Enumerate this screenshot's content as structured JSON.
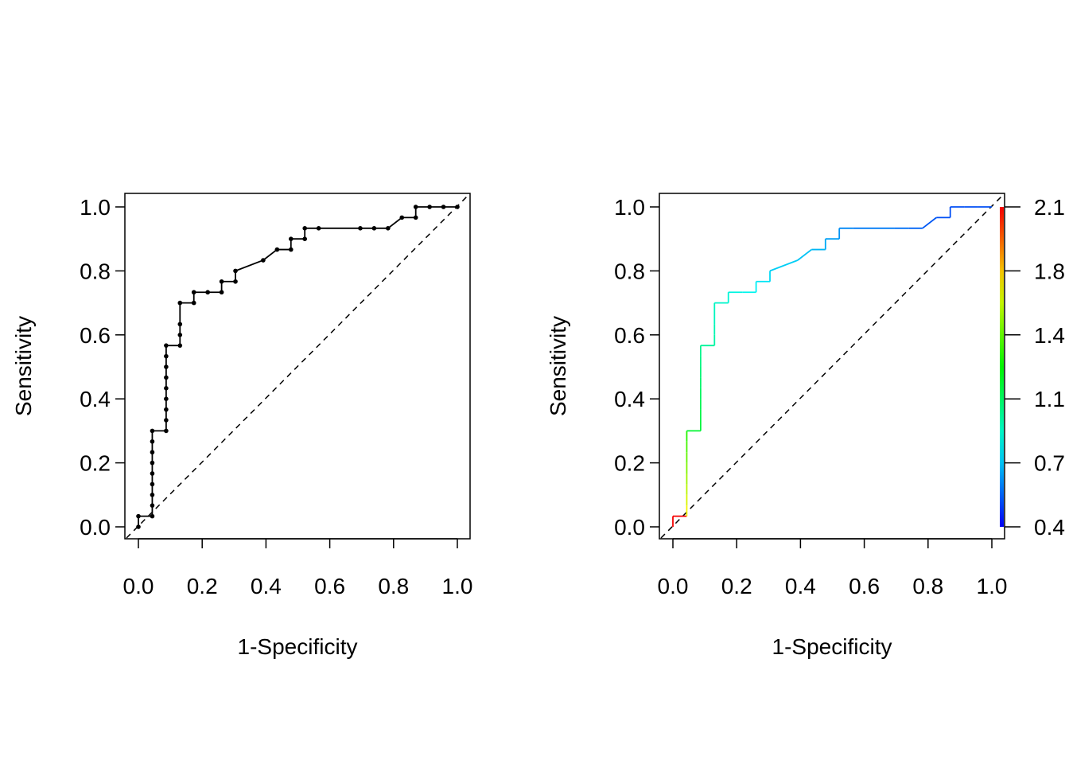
{
  "chart_data": [
    {
      "type": "line",
      "title": "",
      "xlabel": "1-Specificity",
      "ylabel": "Sensitivity",
      "xlim": [
        0,
        1
      ],
      "ylim": [
        0,
        1
      ],
      "xticks": [
        "0.0",
        "0.2",
        "0.4",
        "0.6",
        "0.8",
        "1.0"
      ],
      "yticks": [
        "0.0",
        "0.2",
        "0.4",
        "0.6",
        "0.8",
        "1.0"
      ],
      "show_points": true,
      "line_color": "#000000",
      "reference_line": {
        "x": [
          0,
          1
        ],
        "y": [
          0,
          1
        ],
        "style": "dashed"
      },
      "fpr": [
        0,
        0,
        0.0435,
        0.0435,
        0.0435,
        0.0435,
        0.0435,
        0.0435,
        0.0435,
        0.0435,
        0.0435,
        0.087,
        0.087,
        0.087,
        0.087,
        0.087,
        0.087,
        0.087,
        0.087,
        0.087,
        0.1304,
        0.1304,
        0.1304,
        0.1304,
        0.1739,
        0.1739,
        0.2174,
        0.2609,
        0.2609,
        0.3043,
        0.3043,
        0.3913,
        0.4348,
        0.4783,
        0.4783,
        0.5217,
        0.5217,
        0.5652,
        0.6957,
        0.7391,
        0.7826,
        0.8261,
        0.8696,
        0.8696,
        0.913,
        0.9565,
        1.0
      ],
      "tpr": [
        0,
        0.0333,
        0.0333,
        0.0667,
        0.1,
        0.1333,
        0.1667,
        0.2,
        0.2333,
        0.2667,
        0.3,
        0.3,
        0.3333,
        0.3667,
        0.4,
        0.4333,
        0.4667,
        0.5,
        0.5333,
        0.5667,
        0.5667,
        0.6,
        0.6333,
        0.7,
        0.7,
        0.7333,
        0.7333,
        0.7333,
        0.7667,
        0.7667,
        0.8,
        0.8333,
        0.8667,
        0.8667,
        0.9,
        0.9,
        0.9333,
        0.9333,
        0.9333,
        0.9333,
        0.9333,
        0.9667,
        0.9667,
        1.0,
        1.0,
        1.0,
        1.0
      ]
    },
    {
      "type": "line",
      "title": "",
      "xlabel": "1-Specificity",
      "ylabel": "Sensitivity",
      "xlim": [
        0,
        1
      ],
      "ylim": [
        0,
        1
      ],
      "xticks": [
        "0.0",
        "0.2",
        "0.4",
        "0.6",
        "0.8",
        "1.0"
      ],
      "yticks": [
        "0.0",
        "0.2",
        "0.4",
        "0.6",
        "0.8",
        "1.0"
      ],
      "show_points": false,
      "colored_by_threshold": true,
      "reference_line": {
        "x": [
          0,
          1
        ],
        "y": [
          0,
          1
        ],
        "style": "dashed"
      },
      "colorbar": {
        "ticks": [
          "2.1",
          "1.8",
          "1.4",
          "1.1",
          "0.7",
          "0.4"
        ],
        "range": [
          0.4,
          2.1
        ],
        "palette": "rainbow (red high, blue low)"
      }
    }
  ]
}
